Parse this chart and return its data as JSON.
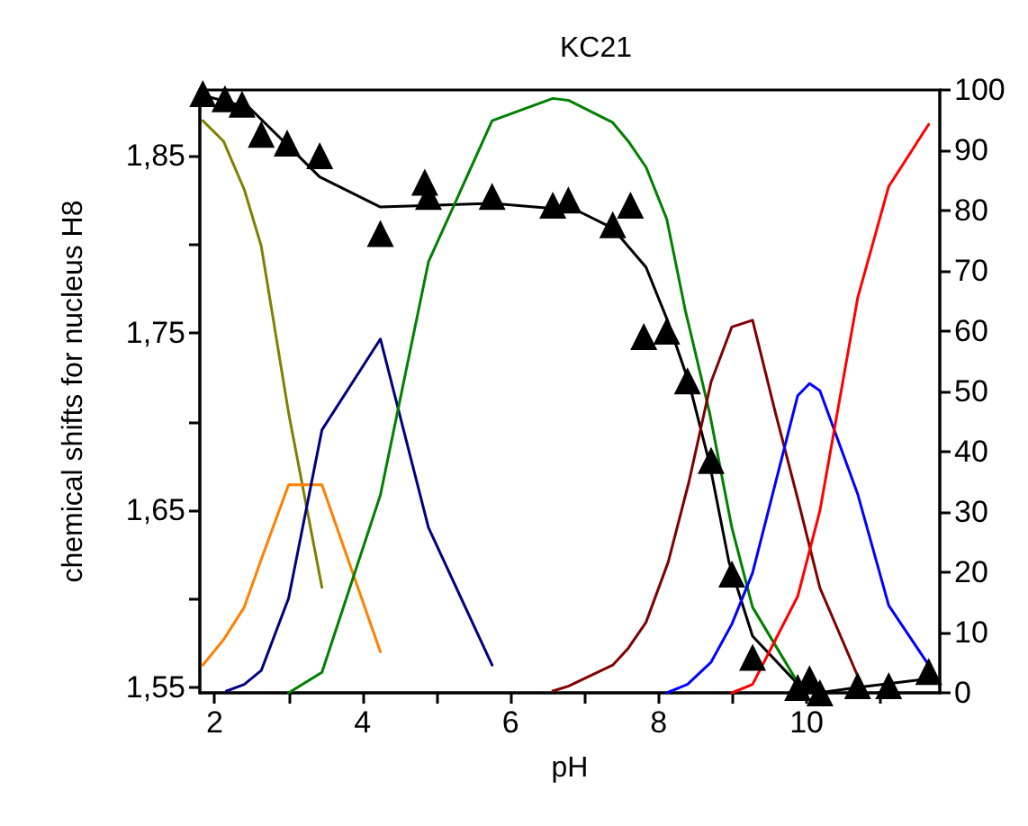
{
  "chart_data": {
    "type": "line",
    "title": "KC21",
    "xlabel": "pH",
    "ylabel": "chemical shifts for nucleus H8",
    "xlim": [
      1.8,
      11.8
    ],
    "xticks": [
      2,
      {
        "value": 3,
        "label": null
      },
      4,
      {
        "value": 5,
        "label": null
      },
      6,
      {
        "value": 7,
        "label": null
      },
      8,
      {
        "value": 9,
        "label": null
      },
      10,
      {
        "value": 11,
        "label": null
      }
    ],
    "ylim": [
      1.547,
      1.887
    ],
    "yticks": [
      {
        "value": 1.55,
        "label": "1,55"
      },
      {
        "value": 1.6,
        "label": null
      },
      {
        "value": 1.65,
        "label": "1,65"
      },
      {
        "value": 1.7,
        "label": null
      },
      {
        "value": 1.75,
        "label": "1,75"
      },
      {
        "value": 1.8,
        "label": null
      },
      {
        "value": 1.85,
        "label": "1,85"
      }
    ],
    "y2lim": [
      0,
      100
    ],
    "y2ticks": [
      0,
      10,
      20,
      30,
      40,
      50,
      60,
      70,
      80,
      90,
      100
    ],
    "grid": false,
    "marker": "none",
    "line_style": "solid",
    "series": [
      {
        "type": "scatter",
        "marker": "triangle",
        "color": "#000000",
        "x": [
          1.84,
          2.14,
          2.37,
          2.63,
          2.98,
          3.42,
          4.24,
          4.84,
          4.89,
          5.75,
          6.57,
          6.78,
          7.38,
          7.62,
          7.8,
          8.11,
          8.39,
          8.71,
          8.99,
          9.27,
          9.88,
          10.04,
          10.18,
          10.69,
          11.11,
          11.65
        ],
        "values": [
          1.885,
          1.882,
          1.879,
          1.862,
          1.857,
          1.85,
          1.806,
          1.835,
          1.827,
          1.827,
          1.822,
          1.825,
          1.811,
          1.822,
          1.748,
          1.751,
          1.723,
          1.678,
          1.614,
          1.567,
          1.55,
          1.555,
          1.547,
          1.551,
          1.551,
          1.559
        ]
      },
      {
        "type": "line",
        "color": "#000000",
        "x": [
          1.84,
          2.47,
          3.42,
          4.24,
          5.75,
          6.9,
          7.38,
          7.83,
          8.13,
          8.41,
          8.69,
          8.95,
          9.27,
          9.88,
          10.16,
          10.69,
          11.65
        ],
        "values": [
          1.884,
          1.877,
          1.838,
          1.821,
          1.823,
          1.819,
          1.809,
          1.787,
          1.756,
          1.722,
          1.676,
          1.621,
          1.579,
          1.552,
          1.547,
          1.55,
          1.555
        ]
      },
      {
        "type": "line",
        "axis": "y2",
        "color": "#808000",
        "x": [
          1.84,
          2.12,
          2.4,
          2.63,
          3.0,
          3.45
        ],
        "values": [
          94.9,
          91.5,
          83.5,
          74.1,
          46.4,
          17.5
        ]
      },
      {
        "type": "line",
        "axis": "y2",
        "color": "#ff8000",
        "x": [
          1.84,
          2.12,
          2.4,
          2.65,
          3.0,
          3.45,
          4.24
        ],
        "values": [
          4.6,
          8.8,
          14.2,
          22.8,
          34.5,
          34.5,
          6.8
        ]
      },
      {
        "type": "line",
        "axis": "y2",
        "color": "#000080",
        "x": [
          2.16,
          2.4,
          2.63,
          3.0,
          3.45,
          4.24,
          4.89,
          5.75
        ],
        "values": [
          0.3,
          1.4,
          3.7,
          15.7,
          43.6,
          58.7,
          27.4,
          4.6
        ]
      },
      {
        "type": "line",
        "axis": "y2",
        "color": "#008000",
        "x": [
          3.0,
          3.45,
          4.24,
          4.89,
          5.75,
          6.57,
          6.78,
          7.38,
          7.59,
          7.83,
          8.11,
          8.36,
          8.69,
          8.99,
          9.27,
          9.88
        ],
        "values": [
          0,
          3.4,
          32.8,
          71.5,
          94.9,
          98.6,
          98.3,
          94.6,
          91.5,
          87.2,
          78.6,
          63.5,
          46.4,
          27.4,
          14.2,
          1.7
        ]
      },
      {
        "type": "line",
        "axis": "y2",
        "color": "#800000",
        "x": [
          6.57,
          6.78,
          7.38,
          7.59,
          7.83,
          8.13,
          8.41,
          8.71,
          8.99,
          9.27,
          9.58,
          9.88,
          10.18,
          10.69
        ],
        "values": [
          0.3,
          1.1,
          4.6,
          7.4,
          11.7,
          21.7,
          35.0,
          51.6,
          60.7,
          61.8,
          46.4,
          32.2,
          17.4,
          2.8
        ]
      },
      {
        "type": "line",
        "axis": "y2",
        "color": "#0000ff",
        "x": [
          8.11,
          8.39,
          8.71,
          8.99,
          9.27,
          9.88,
          10.04,
          10.18,
          10.69,
          11.11,
          11.65
        ],
        "values": [
          0,
          1.4,
          5.1,
          11.4,
          19.9,
          49.3,
          51.3,
          50.1,
          33.0,
          14.5,
          4.6
        ]
      },
      {
        "type": "line",
        "axis": "y2",
        "color": "#ff0000",
        "x": [
          8.99,
          9.27,
          9.88,
          10.18,
          10.69,
          11.11,
          11.65
        ],
        "values": [
          0,
          1.4,
          16.0,
          30.2,
          65.5,
          84.0,
          94.3
        ]
      }
    ]
  }
}
